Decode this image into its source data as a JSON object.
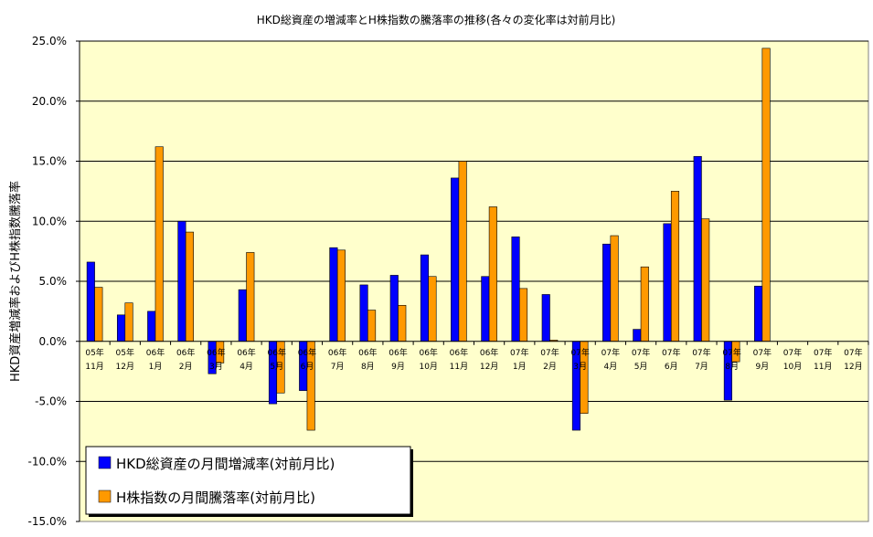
{
  "chart_data": {
    "type": "bar",
    "title": "HKD総資産の増減率とH株指数の騰落率の推移(各々の変化率は対前月比)",
    "xlabel": "",
    "ylabel": "HKD資産増減率およびH株指数騰落率",
    "ylim": [
      -15,
      25
    ],
    "yticks": [
      25,
      20,
      15,
      10,
      5,
      0,
      -5,
      -10,
      -15
    ],
    "ytick_labels": [
      "25.0%",
      "20.0%",
      "15.0%",
      "10.0%",
      "5.0%",
      "0.0%",
      "-5.0%",
      "-10.0%",
      "-15.0%"
    ],
    "categories": [
      [
        "05年",
        "11月"
      ],
      [
        "05年",
        "12月"
      ],
      [
        "06年",
        "1月"
      ],
      [
        "06年",
        "2月"
      ],
      [
        "06年",
        "3月"
      ],
      [
        "06年",
        "4月"
      ],
      [
        "06年",
        "5月"
      ],
      [
        "06年",
        "6月"
      ],
      [
        "06年",
        "7月"
      ],
      [
        "06年",
        "8月"
      ],
      [
        "06年",
        "9月"
      ],
      [
        "06年",
        "10月"
      ],
      [
        "06年",
        "11月"
      ],
      [
        "06年",
        "12月"
      ],
      [
        "07年",
        "1月"
      ],
      [
        "07年",
        "2月"
      ],
      [
        "07年",
        "3月"
      ],
      [
        "07年",
        "4月"
      ],
      [
        "07年",
        "5月"
      ],
      [
        "07年",
        "6月"
      ],
      [
        "07年",
        "7月"
      ],
      [
        "07年",
        "8月"
      ],
      [
        "07年",
        "9月"
      ],
      [
        "07年",
        "10月"
      ],
      [
        "07年",
        "11月"
      ],
      [
        "07年",
        "12月"
      ]
    ],
    "series": [
      {
        "name": "HKD総資産の月間増減率(対前月比)",
        "color": "#0000ff",
        "values": [
          6.6,
          2.2,
          2.5,
          10.0,
          -2.7,
          4.3,
          -5.2,
          -4.1,
          7.8,
          4.7,
          5.5,
          7.2,
          13.6,
          5.4,
          8.7,
          3.9,
          -7.4,
          8.1,
          1.0,
          9.8,
          15.4,
          -4.9,
          4.6,
          null,
          null,
          null
        ]
      },
      {
        "name": "H株指数の月間騰落率(対前月比)",
        "color": "#ff9900",
        "values": [
          4.5,
          3.2,
          16.2,
          9.1,
          -1.8,
          7.4,
          -4.3,
          -7.4,
          7.6,
          2.6,
          3.0,
          5.4,
          15.0,
          11.2,
          4.4,
          0.1,
          -6.0,
          8.8,
          6.2,
          12.5,
          10.2,
          -1.7,
          24.4,
          null,
          null,
          null
        ]
      }
    ],
    "grid": true,
    "legend_position": "bottom-left",
    "colors": {
      "plot_background": "#ffffcc",
      "gridline": "#000000"
    }
  }
}
